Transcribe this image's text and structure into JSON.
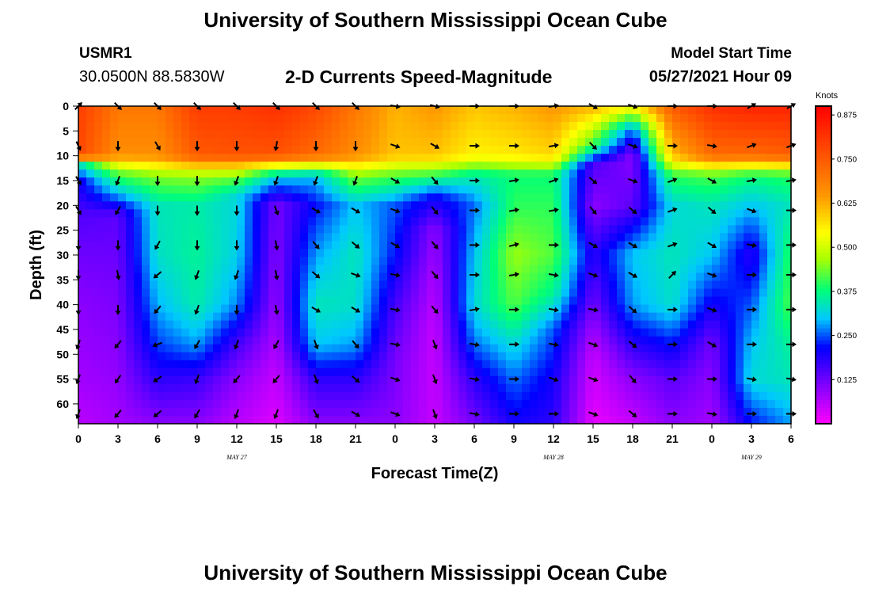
{
  "header": {
    "title": "University of Southern Mississippi Ocean Cube",
    "station_id": "USMR1",
    "station_coords": "30.0500N  88.5830W",
    "plot_title": "2-D Currents Speed-Magnitude",
    "model_start_label": "Model Start Time",
    "model_start_value": "05/27/2021 Hour 09"
  },
  "footer": {
    "title": "University of Southern Mississippi Ocean Cube"
  },
  "chart_data": {
    "type": "heatmap",
    "title": "2-D Currents Speed-Magnitude",
    "xlabel": "Forecast Time(Z)",
    "ylabel": "Depth (ft)",
    "x_tick_labels": [
      "0",
      "3",
      "6",
      "9",
      "12",
      "15",
      "18",
      "21",
      "0",
      "3",
      "6",
      "9",
      "12",
      "15",
      "18",
      "21",
      "0",
      "3",
      "6"
    ],
    "x_date_labels": [
      {
        "text": "MAY 27",
        "tick_index": 4
      },
      {
        "text": "MAY 28",
        "tick_index": 12
      },
      {
        "text": "MAY 29",
        "tick_index": 17
      }
    ],
    "y_ticks": [
      0,
      5,
      10,
      15,
      20,
      25,
      30,
      35,
      40,
      45,
      50,
      55,
      60
    ],
    "ylim": [
      0,
      64
    ],
    "y_inverted": true,
    "colorbar": {
      "unit_label": "Knots",
      "ticks": [
        "0.875",
        "0.750",
        "0.625",
        "0.500",
        "0.375",
        "0.250",
        "0.125"
      ],
      "range": [
        0,
        0.9
      ]
    },
    "speed_profiles": [
      [
        [
          0,
          0.8
        ],
        [
          10,
          0.78
        ],
        [
          12,
          0.32
        ],
        [
          15,
          0.2
        ],
        [
          22,
          0.15
        ],
        [
          28,
          0.13
        ],
        [
          40,
          0.1
        ],
        [
          55,
          0.08
        ],
        [
          64,
          0.06
        ]
      ],
      [
        [
          0,
          0.7
        ],
        [
          10,
          0.66
        ],
        [
          13,
          0.45
        ],
        [
          18,
          0.28
        ],
        [
          22,
          0.14
        ],
        [
          35,
          0.12
        ],
        [
          50,
          0.1
        ],
        [
          64,
          0.08
        ]
      ],
      [
        [
          0,
          0.7
        ],
        [
          10,
          0.66
        ],
        [
          14,
          0.45
        ],
        [
          20,
          0.34
        ],
        [
          30,
          0.33
        ],
        [
          40,
          0.29
        ],
        [
          48,
          0.24
        ],
        [
          55,
          0.18
        ],
        [
          64,
          0.1
        ]
      ],
      [
        [
          0,
          0.8
        ],
        [
          10,
          0.75
        ],
        [
          14,
          0.46
        ],
        [
          20,
          0.35
        ],
        [
          30,
          0.36
        ],
        [
          40,
          0.35
        ],
        [
          48,
          0.28
        ],
        [
          55,
          0.17
        ],
        [
          64,
          0.1
        ]
      ],
      [
        [
          0,
          0.8
        ],
        [
          10,
          0.76
        ],
        [
          14,
          0.45
        ],
        [
          18,
          0.32
        ],
        [
          30,
          0.31
        ],
        [
          40,
          0.27
        ],
        [
          48,
          0.16
        ],
        [
          55,
          0.1
        ],
        [
          64,
          0.06
        ]
      ],
      [
        [
          0,
          0.82
        ],
        [
          10,
          0.76
        ],
        [
          14,
          0.32
        ],
        [
          20,
          0.12
        ],
        [
          35,
          0.1
        ],
        [
          45,
          0.08
        ],
        [
          55,
          0.05
        ],
        [
          64,
          0.03
        ]
      ],
      [
        [
          0,
          0.78
        ],
        [
          10,
          0.72
        ],
        [
          14,
          0.3
        ],
        [
          20,
          0.22
        ],
        [
          30,
          0.28
        ],
        [
          40,
          0.34
        ],
        [
          48,
          0.3
        ],
        [
          55,
          0.18
        ],
        [
          64,
          0.1
        ]
      ],
      [
        [
          0,
          0.7
        ],
        [
          10,
          0.66
        ],
        [
          14,
          0.45
        ],
        [
          20,
          0.3
        ],
        [
          30,
          0.34
        ],
        [
          40,
          0.33
        ],
        [
          48,
          0.28
        ],
        [
          55,
          0.18
        ],
        [
          64,
          0.1
        ]
      ],
      [
        [
          0,
          0.62
        ],
        [
          10,
          0.6
        ],
        [
          14,
          0.42
        ],
        [
          20,
          0.25
        ],
        [
          30,
          0.22
        ],
        [
          40,
          0.16
        ],
        [
          50,
          0.12
        ],
        [
          64,
          0.1
        ]
      ],
      [
        [
          0,
          0.65
        ],
        [
          10,
          0.6
        ],
        [
          14,
          0.4
        ],
        [
          18,
          0.22
        ],
        [
          25,
          0.1
        ],
        [
          35,
          0.07
        ],
        [
          45,
          0.05
        ],
        [
          64,
          0.05
        ]
      ],
      [
        [
          0,
          0.6
        ],
        [
          10,
          0.55
        ],
        [
          14,
          0.35
        ],
        [
          20,
          0.26
        ],
        [
          30,
          0.3
        ],
        [
          40,
          0.32
        ],
        [
          48,
          0.26
        ],
        [
          55,
          0.18
        ],
        [
          64,
          0.12
        ]
      ],
      [
        [
          0,
          0.62
        ],
        [
          10,
          0.56
        ],
        [
          14,
          0.38
        ],
        [
          20,
          0.4
        ],
        [
          30,
          0.46
        ],
        [
          40,
          0.42
        ],
        [
          48,
          0.32
        ],
        [
          55,
          0.26
        ],
        [
          64,
          0.2
        ]
      ],
      [
        [
          0,
          0.65
        ],
        [
          10,
          0.58
        ],
        [
          14,
          0.38
        ],
        [
          20,
          0.4
        ],
        [
          30,
          0.42
        ],
        [
          38,
          0.36
        ],
        [
          45,
          0.25
        ],
        [
          55,
          0.2
        ],
        [
          64,
          0.18
        ]
      ],
      [
        [
          0,
          0.62
        ],
        [
          8,
          0.4
        ],
        [
          12,
          0.15
        ],
        [
          20,
          0.1
        ],
        [
          30,
          0.18
        ],
        [
          40,
          0.12
        ],
        [
          50,
          0.05
        ],
        [
          64,
          0.02
        ]
      ],
      [
        [
          0,
          0.55
        ],
        [
          5,
          0.25
        ],
        [
          10,
          0.1
        ],
        [
          20,
          0.14
        ],
        [
          30,
          0.3
        ],
        [
          40,
          0.28
        ],
        [
          48,
          0.18
        ],
        [
          55,
          0.1
        ],
        [
          64,
          0.05
        ]
      ],
      [
        [
          0,
          0.75
        ],
        [
          10,
          0.6
        ],
        [
          14,
          0.4
        ],
        [
          20,
          0.32
        ],
        [
          30,
          0.34
        ],
        [
          40,
          0.33
        ],
        [
          48,
          0.22
        ],
        [
          55,
          0.14
        ],
        [
          64,
          0.1
        ]
      ],
      [
        [
          0,
          0.82
        ],
        [
          10,
          0.72
        ],
        [
          14,
          0.42
        ],
        [
          20,
          0.34
        ],
        [
          30,
          0.3
        ],
        [
          40,
          0.2
        ],
        [
          48,
          0.12
        ],
        [
          55,
          0.1
        ],
        [
          64,
          0.08
        ]
      ],
      [
        [
          0,
          0.84
        ],
        [
          10,
          0.72
        ],
        [
          14,
          0.38
        ],
        [
          20,
          0.3
        ],
        [
          30,
          0.18
        ],
        [
          40,
          0.25
        ],
        [
          48,
          0.3
        ],
        [
          55,
          0.32
        ],
        [
          64,
          0.22
        ]
      ],
      [
        [
          0,
          0.84
        ],
        [
          10,
          0.74
        ],
        [
          14,
          0.4
        ],
        [
          20,
          0.34
        ],
        [
          30,
          0.4
        ],
        [
          40,
          0.42
        ],
        [
          48,
          0.36
        ],
        [
          55,
          0.34
        ],
        [
          64,
          0.28
        ]
      ]
    ],
    "vector_depths": [
      0,
      8,
      15,
      21,
      28,
      34,
      41,
      48,
      55,
      62
    ],
    "vector_directions_deg": [
      [
        45,
        155,
        150,
        150,
        180,
        180,
        180,
        200,
        200,
        200
      ],
      [
        135,
        180,
        200,
        210,
        180,
        170,
        180,
        220,
        215,
        220
      ],
      [
        135,
        150,
        180,
        180,
        210,
        230,
        220,
        250,
        235,
        230
      ],
      [
        135,
        180,
        180,
        180,
        180,
        200,
        200,
        210,
        200,
        210
      ],
      [
        135,
        180,
        200,
        180,
        180,
        200,
        180,
        200,
        220,
        200
      ],
      [
        135,
        190,
        200,
        160,
        170,
        170,
        170,
        210,
        220,
        200
      ],
      [
        135,
        180,
        200,
        120,
        140,
        130,
        120,
        160,
        160,
        150
      ],
      [
        135,
        180,
        200,
        120,
        130,
        110,
        120,
        140,
        130,
        120
      ],
      [
        100,
        110,
        120,
        110,
        120,
        100,
        100,
        100,
        110,
        110
      ],
      [
        105,
        120,
        140,
        140,
        140,
        140,
        140,
        160,
        160,
        160
      ],
      [
        90,
        90,
        90,
        90,
        90,
        90,
        80,
        100,
        100,
        100
      ],
      [
        90,
        90,
        80,
        80,
        75,
        80,
        90,
        90,
        90,
        90
      ],
      [
        80,
        80,
        70,
        80,
        90,
        100,
        100,
        100,
        110,
        90
      ],
      [
        120,
        135,
        130,
        140,
        120,
        110,
        100,
        110,
        110,
        110
      ],
      [
        110,
        110,
        110,
        130,
        120,
        120,
        130,
        130,
        140,
        130
      ],
      [
        90,
        90,
        70,
        70,
        70,
        45,
        90,
        90,
        90,
        90
      ],
      [
        90,
        100,
        120,
        130,
        120,
        110,
        110,
        120,
        90,
        100
      ],
      [
        60,
        70,
        80,
        110,
        100,
        90,
        90,
        90,
        100,
        90
      ],
      [
        60,
        70,
        80,
        90,
        90,
        90,
        90,
        90,
        100,
        90
      ]
    ]
  }
}
